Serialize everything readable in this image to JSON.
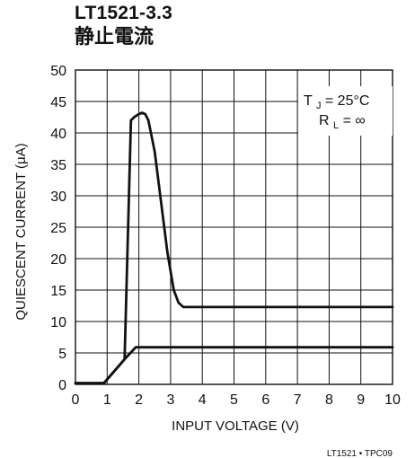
{
  "chart_data": {
    "type": "line",
    "title": "LT1521-3.3",
    "subtitle": "静止電流",
    "xlabel": "INPUT VOLTAGE (V)",
    "ylabel": "QUIESCENT CURRENT (μA)",
    "xlim": [
      0,
      10
    ],
    "ylim": [
      0,
      50
    ],
    "x_ticks": [
      "0",
      "1",
      "2",
      "3",
      "4",
      "5",
      "6",
      "7",
      "8",
      "9",
      "10"
    ],
    "y_ticks": [
      "0",
      "5",
      "10",
      "15",
      "20",
      "25",
      "30",
      "35",
      "40",
      "45",
      "50"
    ],
    "grid": true,
    "annotation": {
      "line1_main": "T",
      "line1_sub": "J",
      "line1_tail": " = 25°C",
      "line2_main": "R",
      "line2_sub": "L",
      "line2_tail": " = ∞"
    },
    "footer_code": "LT1521 • TPC09",
    "series": [
      {
        "points": [
          {
            "x": 0,
            "y": 0.2
          },
          {
            "x": 0.9,
            "y": 0.2
          },
          {
            "x": 1.55,
            "y": 4
          },
          {
            "x": 1.75,
            "y": 42
          },
          {
            "x": 1.85,
            "y": 42.5
          },
          {
            "x": 2.0,
            "y": 43
          },
          {
            "x": 2.1,
            "y": 43.2
          },
          {
            "x": 2.2,
            "y": 43
          },
          {
            "x": 2.3,
            "y": 42
          },
          {
            "x": 2.5,
            "y": 37
          },
          {
            "x": 2.7,
            "y": 29
          },
          {
            "x": 2.9,
            "y": 21
          },
          {
            "x": 3.1,
            "y": 15
          },
          {
            "x": 3.25,
            "y": 13
          },
          {
            "x": 3.4,
            "y": 12.3
          },
          {
            "x": 10,
            "y": 12.3
          }
        ]
      },
      {
        "points": [
          {
            "x": 0,
            "y": 0.2
          },
          {
            "x": 0.9,
            "y": 0.2
          },
          {
            "x": 1.55,
            "y": 4
          },
          {
            "x": 1.9,
            "y": 5.9
          },
          {
            "x": 10,
            "y": 5.9
          }
        ]
      }
    ]
  }
}
